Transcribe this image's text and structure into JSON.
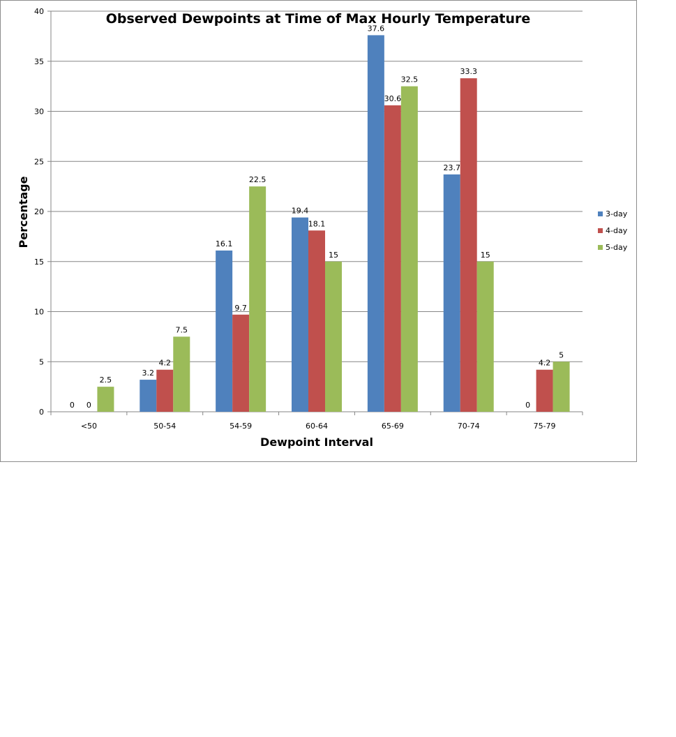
{
  "chart_data": {
    "type": "bar",
    "title": "Observed Dewpoints at Time of Max Hourly Temperature",
    "xlabel": "Dewpoint  Interval",
    "ylabel": "Percentage",
    "categories": [
      "<50",
      "50-54",
      "54-59",
      "60-64",
      "65-69",
      "70-74",
      "75-79"
    ],
    "series": [
      {
        "name": "3-day",
        "color": "#4f81bd",
        "values": [
          0,
          3.2,
          16.1,
          19.4,
          37.6,
          23.7,
          0
        ]
      },
      {
        "name": "4-day",
        "color": "#c0504d",
        "values": [
          0,
          4.2,
          9.7,
          18.1,
          30.6,
          33.3,
          4.2
        ]
      },
      {
        "name": "5-day",
        "color": "#9bbb59",
        "values": [
          2.5,
          7.5,
          22.5,
          15,
          32.5,
          15,
          5
        ]
      }
    ],
    "ylim": [
      0,
      40
    ],
    "yticks": [
      0,
      5,
      10,
      15,
      20,
      25,
      30,
      35,
      40
    ],
    "grid": true,
    "legend": "right"
  }
}
